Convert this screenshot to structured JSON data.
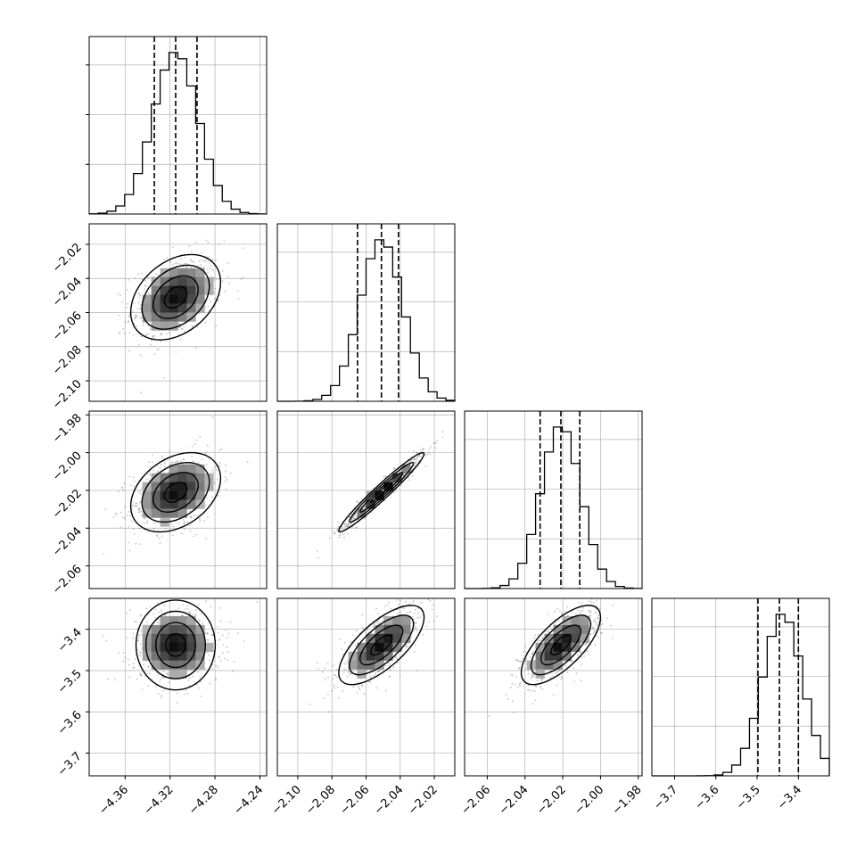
{
  "chart_data": {
    "type": "corner",
    "colors": {
      "background": "#ffffff",
      "grid": "#b0b0b0",
      "ink": "#000000",
      "points": "#555555"
    },
    "grid": true,
    "parameters": [
      {
        "range": [
          -4.392,
          -4.234
        ],
        "mean": -4.315,
        "sigma": 0.02,
        "quantiles": [
          -4.334,
          -4.315,
          -4.296
        ]
      },
      {
        "range": [
          -2.112,
          -2.008
        ],
        "mean": -2.051,
        "sigma": 0.0125,
        "quantiles": [
          -2.065,
          -2.051,
          -2.041
        ]
      },
      {
        "range": [
          -2.072,
          -1.978
        ],
        "mean": -2.021,
        "sigma": 0.0105,
        "quantiles": [
          -2.032,
          -2.021,
          -2.011
        ]
      },
      {
        "range": [
          -3.755,
          -3.325
        ],
        "mean": -3.438,
        "sigma": 0.048,
        "quantiles": [
          -3.498,
          -3.446,
          -3.4
        ]
      }
    ],
    "correlations": [
      [
        1,
        0.35,
        0.35,
        0.0
      ],
      [
        0.35,
        1,
        0.97,
        0.7
      ],
      [
        0.35,
        0.97,
        1,
        0.7
      ],
      [
        0.0,
        0.7,
        0.7,
        1
      ]
    ],
    "x_ticks": [
      [
        "−4.36",
        "−4.32",
        "−4.28",
        "−4.24"
      ],
      [
        "−2.10",
        "−2.08",
        "−2.06",
        "−2.04",
        "−2.02"
      ],
      [
        "−2.06",
        "−2.04",
        "−2.02",
        "−2.00",
        "−1.98"
      ],
      [
        "−3.7",
        "−3.6",
        "−3.5",
        "−3.4"
      ]
    ],
    "x_tick_values": [
      [
        -4.36,
        -4.32,
        -4.28,
        -4.24
      ],
      [
        -2.1,
        -2.08,
        -2.06,
        -2.04,
        -2.02
      ],
      [
        -2.06,
        -2.04,
        -2.02,
        -2.0,
        -1.98
      ],
      [
        -3.7,
        -3.6,
        -3.5,
        -3.4
      ]
    ],
    "y_ticks": [
      [],
      [
        "−2.02",
        "−2.04",
        "−2.06",
        "−2.08",
        "−2.10"
      ],
      [
        "−1.98",
        "−2.00",
        "−2.02",
        "−2.04",
        "−2.06"
      ],
      [
        "−3.4",
        "−3.5",
        "−3.6",
        "−3.7"
      ]
    ],
    "y_tick_values": [
      [],
      [
        -2.02,
        -2.04,
        -2.06,
        -2.08,
        -2.1
      ],
      [
        -1.98,
        -2.0,
        -2.02,
        -2.04,
        -2.06
      ],
      [
        -3.4,
        -3.5,
        -3.6,
        -3.7
      ]
    ]
  }
}
